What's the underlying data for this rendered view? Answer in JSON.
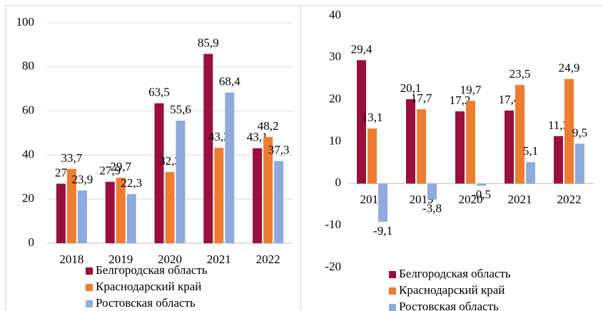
{
  "chart_data": [
    {
      "type": "bar",
      "categories": [
        "2018",
        "2019",
        "2020",
        "2021",
        "2022"
      ],
      "series": [
        {
          "name": "Белгородская область",
          "color": "#990f3d",
          "values": [
            27,
            27.9,
            63.5,
            85.9,
            43.1
          ],
          "value_labels": [
            "27",
            "27,9",
            "63,5",
            "85,9",
            "43,1"
          ]
        },
        {
          "name": "Краснодарский край",
          "color": "#ed7d31",
          "values": [
            33.7,
            29.7,
            32.3,
            43.3,
            48.2
          ],
          "value_labels": [
            "33,7",
            "29,7",
            "32,3",
            "43,3",
            "48,2"
          ]
        },
        {
          "name": "Ростовская область",
          "color": "#8faadc",
          "values": [
            23.9,
            22.3,
            55.6,
            68.4,
            37.3
          ],
          "value_labels": [
            "23,9",
            "22,3",
            "55,6",
            "68,4",
            "37,3"
          ]
        }
      ],
      "ylim": [
        0,
        100
      ],
      "yticks": [
        0,
        20,
        40,
        60,
        80,
        100
      ],
      "grid": true
    },
    {
      "type": "bar",
      "categories": [
        "2018",
        "2019",
        "2020",
        "2021",
        "2022"
      ],
      "series": [
        {
          "name": "Белгородская область",
          "color": "#990f3d",
          "values": [
            29.4,
            20.1,
            17.2,
            17.4,
            11.3
          ],
          "value_labels": [
            "29,4",
            "20,1",
            "17,2",
            "17,4",
            "11,3"
          ]
        },
        {
          "name": "Краснодарский край",
          "color": "#ed7d31",
          "values": [
            13.1,
            17.7,
            19.7,
            23.5,
            24.9
          ],
          "value_labels": [
            "13,1",
            "17,7",
            "19,7",
            "23,5",
            "24,9"
          ]
        },
        {
          "name": "Ростовская область",
          "color": "#8faadc",
          "values": [
            -9.1,
            -3.8,
            -0.5,
            5.1,
            9.5
          ],
          "value_labels": [
            "-9,1",
            "-3,8",
            "-0,5",
            "5,1",
            "9,5"
          ]
        }
      ],
      "ylim": [
        -20,
        40
      ],
      "yticks": [
        -20,
        -10,
        0,
        10,
        20,
        30,
        40
      ],
      "grid": false
    }
  ]
}
